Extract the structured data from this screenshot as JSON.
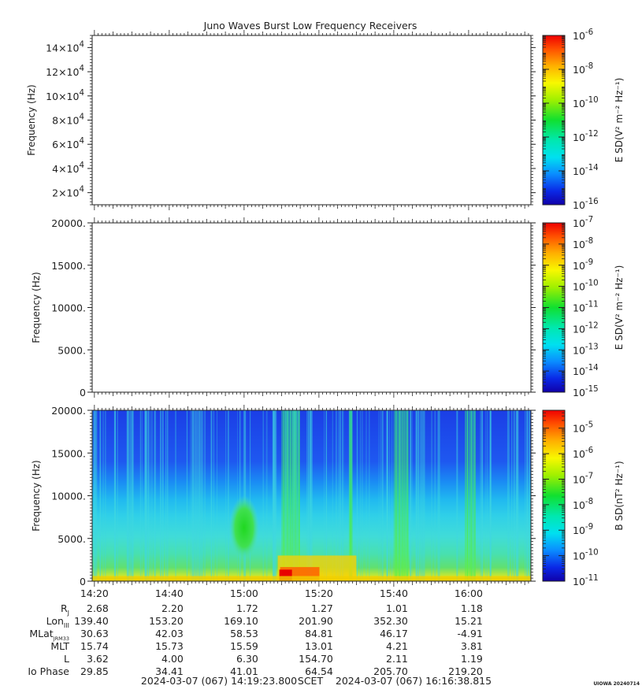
{
  "title": "Juno Waves Burst Low Frequency Receivers",
  "watermark": "UIOWA 20240714",
  "x_ticks": [
    "14:20",
    "14:40",
    "15:00",
    "15:20",
    "15:40",
    "16:00"
  ],
  "x_tick_minutes": [
    20,
    40,
    60,
    80,
    100,
    120
  ],
  "time_start_minutes": 19.4,
  "time_end_minutes": 136.65,
  "ephemeris": {
    "rows": [
      {
        "label": "R",
        "sub": "J",
        "values": [
          "2.68",
          "2.20",
          "1.72",
          "1.27",
          "1.01",
          "1.18"
        ]
      },
      {
        "label": "Lon",
        "sub": "III",
        "values": [
          "139.40",
          "153.20",
          "169.10",
          "201.90",
          "352.30",
          "15.21"
        ]
      },
      {
        "label": "MLat",
        "sub": "JRM33",
        "values": [
          "30.63",
          "42.03",
          "58.53",
          "84.81",
          "46.17",
          "-4.91"
        ]
      },
      {
        "label": "MLT",
        "sub": "",
        "values": [
          "15.74",
          "15.73",
          "15.59",
          "13.01",
          "4.21",
          "3.81"
        ]
      },
      {
        "label": "L",
        "sub": "",
        "values": [
          "3.62",
          "4.00",
          "6.30",
          "154.70",
          "2.11",
          "1.19"
        ]
      },
      {
        "label": "Io Phase",
        "sub": "",
        "values": [
          "29.85",
          "34.41",
          "41.01",
          "64.54",
          "205.70",
          "219.20"
        ]
      }
    ]
  },
  "footer": {
    "start": "2024-03-07 (067) 14:19:23.800",
    "scet": "SCET",
    "end": "2024-03-07 (067) 16:16:38.815"
  },
  "chart_data": [
    {
      "type": "heatmap",
      "panel": "top",
      "ylabel": "Frequency (Hz)",
      "y_ticks": [
        {
          "mant": "2",
          "exp": "4",
          "value": 20000
        },
        {
          "mant": "4",
          "exp": "4",
          "value": 40000
        },
        {
          "mant": "6",
          "exp": "4",
          "value": 60000
        },
        {
          "mant": "8",
          "exp": "4",
          "value": 80000
        },
        {
          "mant": "10",
          "exp": "4",
          "value": 100000
        },
        {
          "mant": "12",
          "exp": "4",
          "value": 120000
        },
        {
          "mant": "14",
          "exp": "4",
          "value": 140000
        }
      ],
      "ylim": [
        10000,
        150000
      ],
      "colorbar": {
        "label": "E SD(V² m⁻² Hz⁻¹)",
        "range_log": [
          -16,
          -6
        ],
        "ticks": [
          {
            "mant": "10",
            "exp": "-6",
            "value": -6
          },
          {
            "mant": "10",
            "exp": "-8",
            "value": -8
          },
          {
            "mant": "10",
            "exp": "-10",
            "value": -10
          },
          {
            "mant": "10",
            "exp": "-12",
            "value": -12
          },
          {
            "mant": "10",
            "exp": "-14",
            "value": -14
          },
          {
            "mant": "10",
            "exp": "-16",
            "value": -16
          }
        ]
      },
      "has_data": false
    },
    {
      "type": "heatmap",
      "panel": "middle",
      "ylabel": "Frequency (Hz)",
      "y_ticks": [
        {
          "label": "0",
          "value": 0
        },
        {
          "label": "5000.",
          "value": 5000
        },
        {
          "label": "10000.",
          "value": 10000
        },
        {
          "label": "15000.",
          "value": 15000
        },
        {
          "label": "20000.",
          "value": 20000
        }
      ],
      "ylim": [
        0,
        20000
      ],
      "colorbar": {
        "label": "E SD(V² m⁻² Hz⁻¹)",
        "range_log": [
          -15,
          -7
        ],
        "ticks": [
          {
            "mant": "10",
            "exp": "-7",
            "value": -7
          },
          {
            "mant": "10",
            "exp": "-8",
            "value": -8
          },
          {
            "mant": "10",
            "exp": "-9",
            "value": -9
          },
          {
            "mant": "10",
            "exp": "-10",
            "value": -10
          },
          {
            "mant": "10",
            "exp": "-11",
            "value": -11
          },
          {
            "mant": "10",
            "exp": "-12",
            "value": -12
          },
          {
            "mant": "10",
            "exp": "-13",
            "value": -13
          },
          {
            "mant": "10",
            "exp": "-14",
            "value": -14
          },
          {
            "mant": "10",
            "exp": "-15",
            "value": -15
          }
        ]
      },
      "has_data": false
    },
    {
      "type": "heatmap",
      "panel": "bottom",
      "ylabel": "Frequency (Hz)",
      "y_ticks": [
        {
          "label": "0",
          "value": 0
        },
        {
          "label": "5000.",
          "value": 5000
        },
        {
          "label": "10000.",
          "value": 10000
        },
        {
          "label": "15000.",
          "value": 15000
        },
        {
          "label": "20000.",
          "value": 20000
        }
      ],
      "ylim": [
        0,
        20000
      ],
      "colorbar": {
        "label": "B SD(nT² Hz⁻¹)",
        "range_log": [
          -11,
          -4.3
        ],
        "ticks": [
          {
            "mant": "10",
            "exp": "-5",
            "value": -5
          },
          {
            "mant": "10",
            "exp": "-6",
            "value": -6
          },
          {
            "mant": "10",
            "exp": "-7",
            "value": -7
          },
          {
            "mant": "10",
            "exp": "-8",
            "value": -8
          },
          {
            "mant": "10",
            "exp": "-9",
            "value": -9
          },
          {
            "mant": "10",
            "exp": "-10",
            "value": -10
          },
          {
            "mant": "10",
            "exp": "-11",
            "value": -11
          }
        ]
      },
      "has_data": true,
      "features": [
        {
          "kind": "background",
          "note": "deep blue band above ~10 kHz grading to cyan below"
        },
        {
          "kind": "blob",
          "time_minutes": [
            56,
            64
          ],
          "freq_hz": [
            2500,
            10000
          ],
          "level_log": -8
        },
        {
          "kind": "burst",
          "time_minutes": [
            70,
            75
          ],
          "freq_hz": [
            0,
            20000
          ],
          "level_log": -8.2
        },
        {
          "kind": "burst",
          "time_minutes": [
            88,
            89
          ],
          "freq_hz": [
            0,
            20000
          ],
          "level_log": -8.5
        },
        {
          "kind": "burst",
          "time_minutes": [
            100,
            104
          ],
          "freq_hz": [
            0,
            20000
          ],
          "level_log": -8.5
        },
        {
          "kind": "burst",
          "time_minutes": [
            119,
            122
          ],
          "freq_hz": [
            0,
            20000
          ],
          "level_log": -8.5
        },
        {
          "kind": "intense_low",
          "time_minutes": [
            69,
            90
          ],
          "freq_hz": [
            0,
            3000
          ],
          "level_log": -5
        }
      ]
    }
  ]
}
